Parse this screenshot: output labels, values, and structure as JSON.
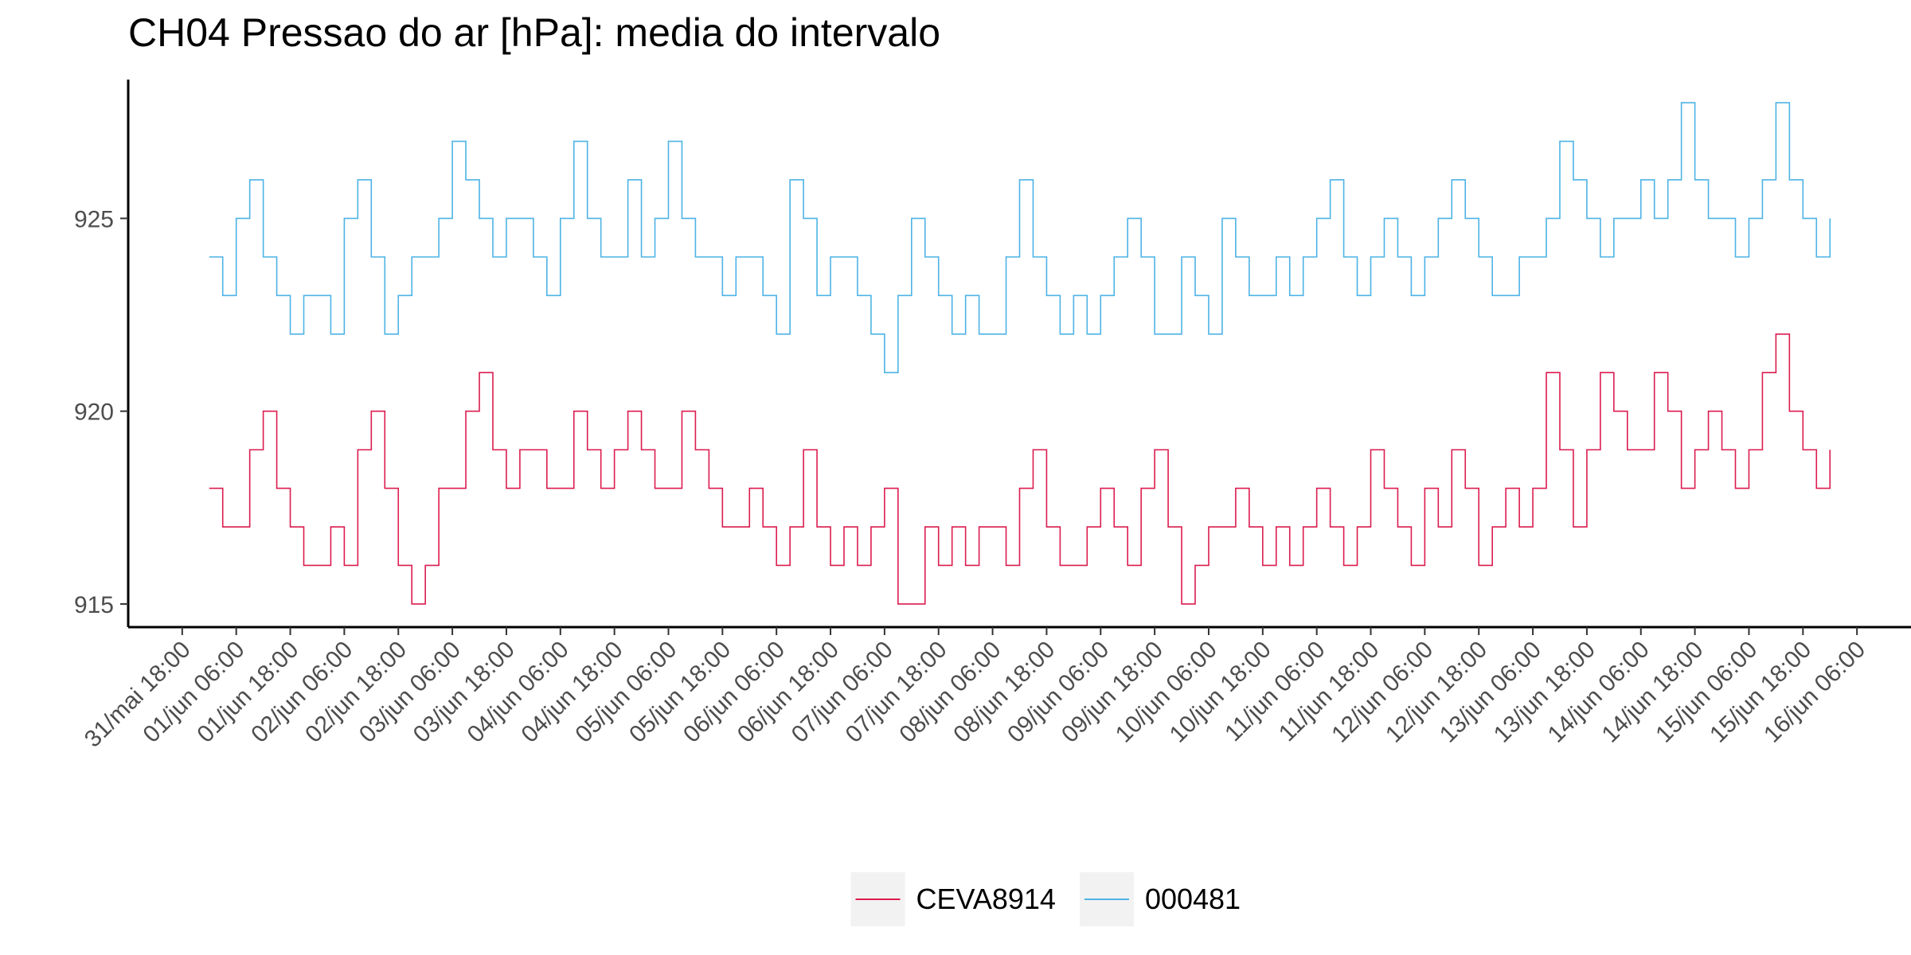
{
  "chart_data": {
    "type": "step-line",
    "title": "CH04 Pressao do ar [hPa]: media do intervalo",
    "x": [
      "01/jun 00:00",
      "01/jun 03:00",
      "01/jun 06:00",
      "01/jun 09:00",
      "01/jun 12:00",
      "01/jun 15:00",
      "01/jun 18:00",
      "01/jun 21:00",
      "02/jun 00:00",
      "02/jun 03:00",
      "02/jun 06:00",
      "02/jun 09:00",
      "02/jun 12:00",
      "02/jun 15:00",
      "02/jun 18:00",
      "02/jun 21:00",
      "03/jun 00:00",
      "03/jun 03:00",
      "03/jun 06:00",
      "03/jun 09:00",
      "03/jun 12:00",
      "03/jun 15:00",
      "03/jun 18:00",
      "03/jun 21:00",
      "04/jun 00:00",
      "04/jun 03:00",
      "04/jun 06:00",
      "04/jun 09:00",
      "04/jun 12:00",
      "04/jun 15:00",
      "04/jun 18:00",
      "04/jun 21:00",
      "05/jun 00:00",
      "05/jun 03:00",
      "05/jun 06:00",
      "05/jun 09:00",
      "05/jun 12:00",
      "05/jun 15:00",
      "05/jun 18:00",
      "05/jun 21:00",
      "06/jun 00:00",
      "06/jun 03:00",
      "06/jun 06:00",
      "06/jun 09:00",
      "06/jun 12:00",
      "06/jun 15:00",
      "06/jun 18:00",
      "06/jun 21:00",
      "07/jun 00:00",
      "07/jun 03:00",
      "07/jun 06:00",
      "07/jun 09:00",
      "07/jun 12:00",
      "07/jun 15:00",
      "07/jun 18:00",
      "07/jun 21:00",
      "08/jun 00:00",
      "08/jun 03:00",
      "08/jun 06:00",
      "08/jun 09:00",
      "08/jun 12:00",
      "08/jun 15:00",
      "08/jun 18:00",
      "08/jun 21:00",
      "09/jun 00:00",
      "09/jun 03:00",
      "09/jun 06:00",
      "09/jun 09:00",
      "09/jun 12:00",
      "09/jun 15:00",
      "09/jun 18:00",
      "09/jun 21:00",
      "10/jun 00:00",
      "10/jun 03:00",
      "10/jun 06:00",
      "10/jun 09:00",
      "10/jun 12:00",
      "10/jun 15:00",
      "10/jun 18:00",
      "10/jun 21:00",
      "11/jun 00:00",
      "11/jun 03:00",
      "11/jun 06:00",
      "11/jun 09:00",
      "11/jun 12:00",
      "11/jun 15:00",
      "11/jun 18:00",
      "11/jun 21:00",
      "12/jun 00:00",
      "12/jun 03:00",
      "12/jun 06:00",
      "12/jun 09:00",
      "12/jun 12:00",
      "12/jun 15:00",
      "12/jun 18:00",
      "12/jun 21:00",
      "13/jun 00:00",
      "13/jun 03:00",
      "13/jun 06:00",
      "13/jun 09:00",
      "13/jun 12:00",
      "13/jun 15:00",
      "13/jun 18:00",
      "13/jun 21:00",
      "14/jun 00:00",
      "14/jun 03:00",
      "14/jun 06:00",
      "14/jun 09:00",
      "14/jun 12:00",
      "14/jun 15:00",
      "14/jun 18:00",
      "14/jun 21:00",
      "15/jun 00:00",
      "15/jun 03:00",
      "15/jun 06:00",
      "15/jun 09:00",
      "15/jun 12:00",
      "15/jun 15:00",
      "15/jun 18:00",
      "15/jun 21:00",
      "16/jun 00:00"
    ],
    "series": [
      {
        "name": "CEVA8914",
        "color": "#dc1c4f",
        "values": [
          918,
          917,
          917,
          919,
          920,
          918,
          917,
          916,
          916,
          917,
          916,
          919,
          920,
          918,
          916,
          915,
          916,
          918,
          918,
          920,
          921,
          919,
          918,
          919,
          919,
          918,
          918,
          920,
          919,
          918,
          919,
          920,
          919,
          918,
          918,
          920,
          919,
          918,
          917,
          917,
          918,
          917,
          916,
          917,
          919,
          917,
          916,
          917,
          916,
          917,
          918,
          915,
          915,
          917,
          916,
          917,
          916,
          917,
          917,
          916,
          918,
          919,
          917,
          916,
          916,
          917,
          918,
          917,
          916,
          918,
          919,
          917,
          915,
          916,
          917,
          917,
          918,
          917,
          916,
          917,
          916,
          917,
          918,
          917,
          916,
          917,
          919,
          918,
          917,
          916,
          918,
          917,
          919,
          918,
          916,
          917,
          918,
          917,
          918,
          921,
          919,
          917,
          919,
          921,
          920,
          919,
          919,
          921,
          920,
          918,
          919,
          920,
          919,
          918,
          919,
          921,
          922,
          920,
          919,
          918,
          919
        ]
      },
      {
        "name": "000481",
        "color": "#4db3e6",
        "values": [
          924,
          923,
          925,
          926,
          924,
          923,
          922,
          923,
          923,
          922,
          925,
          926,
          924,
          922,
          923,
          924,
          924,
          925,
          927,
          926,
          925,
          924,
          925,
          925,
          924,
          923,
          925,
          927,
          925,
          924,
          924,
          926,
          924,
          925,
          927,
          925,
          924,
          924,
          923,
          924,
          924,
          923,
          922,
          926,
          925,
          923,
          924,
          924,
          923,
          922,
          921,
          923,
          925,
          924,
          923,
          922,
          923,
          922,
          922,
          924,
          926,
          924,
          923,
          922,
          923,
          922,
          923,
          924,
          925,
          924,
          922,
          922,
          924,
          923,
          922,
          925,
          924,
          923,
          923,
          924,
          923,
          924,
          925,
          926,
          924,
          923,
          924,
          925,
          924,
          923,
          924,
          925,
          926,
          925,
          924,
          923,
          923,
          924,
          924,
          925,
          927,
          926,
          925,
          924,
          925,
          925,
          926,
          925,
          926,
          928,
          926,
          925,
          925,
          924,
          925,
          926,
          928,
          926,
          925,
          924,
          925
        ]
      }
    ],
    "xlim": [
      "31/mai 06:00",
      "16/jun 18:00"
    ],
    "xticks": [
      "31/mai 18:00",
      "01/jun 06:00",
      "01/jun 18:00",
      "02/jun 06:00",
      "02/jun 18:00",
      "03/jun 06:00",
      "03/jun 18:00",
      "04/jun 06:00",
      "04/jun 18:00",
      "05/jun 06:00",
      "05/jun 18:00",
      "06/jun 06:00",
      "06/jun 18:00",
      "07/jun 06:00",
      "07/jun 18:00",
      "08/jun 06:00",
      "08/jun 18:00",
      "09/jun 06:00",
      "09/jun 18:00",
      "10/jun 06:00",
      "10/jun 18:00",
      "11/jun 06:00",
      "11/jun 18:00",
      "12/jun 06:00",
      "12/jun 18:00",
      "13/jun 06:00",
      "13/jun 18:00",
      "14/jun 06:00",
      "14/jun 18:00",
      "15/jun 06:00",
      "15/jun 18:00",
      "16/jun 06:00"
    ],
    "ylim": [
      914.4,
      928.6
    ],
    "yticks": [
      915,
      920,
      925
    ],
    "grid": false,
    "legend": "bottom"
  }
}
